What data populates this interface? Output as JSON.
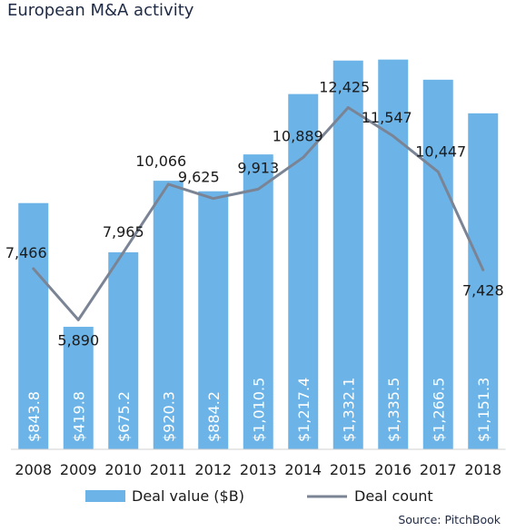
{
  "chart_data": {
    "type": "bar",
    "title": "European M&A activity",
    "categories": [
      "2008",
      "2009",
      "2010",
      "2011",
      "2012",
      "2013",
      "2014",
      "2015",
      "2016",
      "2017",
      "2018"
    ],
    "series": [
      {
        "name": "Deal value ($B)",
        "type": "bar",
        "values": [
          843.8,
          419.8,
          675.2,
          920.3,
          884.2,
          1010.5,
          1217.4,
          1332.1,
          1335.5,
          1266.5,
          1151.3
        ],
        "labels": [
          "$843.8",
          "$419.8",
          "$675.2",
          "$920.3",
          "$884.2",
          "$1,010.5",
          "$1,217.4",
          "$1,332.1",
          "$1,335.5",
          "$1,266.5",
          "$1,151.3"
        ]
      },
      {
        "name": "Deal count",
        "type": "line",
        "values": [
          7466,
          5890,
          7965,
          10066,
          9625,
          9913,
          10889,
          12425,
          11547,
          10447,
          7428
        ],
        "labels": [
          "7,466",
          "5,890",
          "7,965",
          "10,066",
          "9,625",
          "9,913",
          "10,889",
          "12,425",
          "11,547",
          "10,447",
          "7,428"
        ]
      }
    ],
    "bar_axis_range": [
      0,
      1600
    ],
    "line_axis_range": [
      4000,
      13500
    ],
    "grid": false,
    "legend_position": "bottom",
    "colors": {
      "bar": "#6cb4e8",
      "line": "#7a8494",
      "text": "#1a1a1a",
      "bar_label": "#ffffff"
    },
    "source": "Source: PitchBook"
  }
}
